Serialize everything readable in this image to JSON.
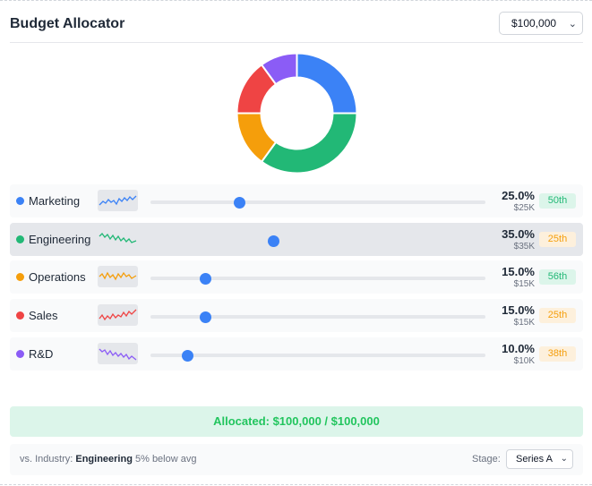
{
  "header": {
    "title": "Budget Allocator",
    "total_budget": "$100,000"
  },
  "chart_data": {
    "type": "pie",
    "title": "",
    "categories": [
      "Marketing",
      "Engineering",
      "Operations",
      "Sales",
      "R&D"
    ],
    "values": [
      25,
      35,
      15,
      15,
      10
    ],
    "colors": [
      "#3b82f6",
      "#22b876",
      "#f59e0b",
      "#ef4444",
      "#8b5cf6"
    ],
    "donut": true
  },
  "categories": [
    {
      "name": "Marketing",
      "color": "#3b82f6",
      "percent_label": "25.0%",
      "amount": "$25K",
      "rank": "50th",
      "rank_bg": "#dcf5ea",
      "rank_color": "#22b876",
      "slider": 0.25
    },
    {
      "name": "Engineering",
      "color": "#22b876",
      "percent_label": "35.0%",
      "amount": "$35K",
      "rank": "25th",
      "rank_bg": "#fdf0dc",
      "rank_color": "#f59e0b",
      "slider": 0.35
    },
    {
      "name": "Operations",
      "color": "#f59e0b",
      "percent_label": "15.0%",
      "amount": "$15K",
      "rank": "56th",
      "rank_bg": "#dcf5ea",
      "rank_color": "#22b876",
      "slider": 0.15
    },
    {
      "name": "Sales",
      "color": "#ef4444",
      "percent_label": "15.0%",
      "amount": "$15K",
      "rank": "25th",
      "rank_bg": "#fdf0dc",
      "rank_color": "#f59e0b",
      "slider": 0.15
    },
    {
      "name": "R&D",
      "color": "#8b5cf6",
      "percent_label": "10.0%",
      "amount": "$10K",
      "rank": "38th",
      "rank_bg": "#fdf0dc",
      "rank_color": "#f59e0b",
      "slider": 0.1
    }
  ],
  "allocation": {
    "text": "Allocated: $100,000 / $100,000"
  },
  "footer": {
    "compare_prefix": "vs. Industry:",
    "compare_category": "Engineering",
    "compare_detail": "5% below avg",
    "stage_label": "Stage:",
    "stage_value": "Series A"
  }
}
